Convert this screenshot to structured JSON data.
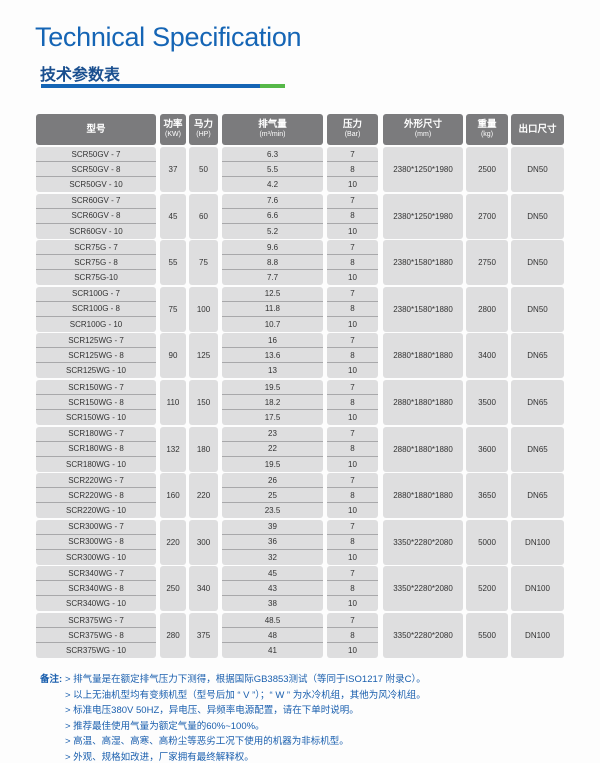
{
  "header": {
    "title": "Technical Specification",
    "subtitle": "技术参数表",
    "accent_blue": "#1565b5",
    "accent_green": "#56b848"
  },
  "table": {
    "columns": [
      {
        "label": "型号",
        "unit": ""
      },
      {
        "label": "功率",
        "unit": "(KW)"
      },
      {
        "label": "马力",
        "unit": "(HP)"
      },
      {
        "label": "排气量",
        "unit": "(m³/min)"
      },
      {
        "label": "压力",
        "unit": "(Bar)"
      },
      {
        "label": "外形尺寸",
        "unit": "(mm)"
      },
      {
        "label": "重量",
        "unit": "(kg)"
      },
      {
        "label": "出口尺寸",
        "unit": ""
      }
    ],
    "groups": [
      {
        "models": [
          "SCR50GV - 7",
          "SCR50GV - 8",
          "SCR50GV - 10"
        ],
        "power": "37",
        "hp": "50",
        "flow": [
          "6.3",
          "5.5",
          "4.2"
        ],
        "pressure": [
          "7",
          "8",
          "10"
        ],
        "dims": "2380*1250*1980",
        "weight": "2500",
        "outlet": "DN50"
      },
      {
        "models": [
          "SCR60GV - 7",
          "SCR60GV - 8",
          "SCR60GV - 10"
        ],
        "power": "45",
        "hp": "60",
        "flow": [
          "7.6",
          "6.6",
          "5.2"
        ],
        "pressure": [
          "7",
          "8",
          "10"
        ],
        "dims": "2380*1250*1980",
        "weight": "2700",
        "outlet": "DN50"
      },
      {
        "models": [
          "SCR75G - 7",
          "SCR75G - 8",
          "SCR75G-10"
        ],
        "power": "55",
        "hp": "75",
        "flow": [
          "9.6",
          "8.8",
          "7.7"
        ],
        "pressure": [
          "7",
          "8",
          "10"
        ],
        "dims": "2380*1580*1880",
        "weight": "2750",
        "outlet": "DN50"
      },
      {
        "models": [
          "SCR100G - 7",
          "SCR100G - 8",
          "SCR100G - 10"
        ],
        "power": "75",
        "hp": "100",
        "flow": [
          "12.5",
          "11.8",
          "10.7"
        ],
        "pressure": [
          "7",
          "8",
          "10"
        ],
        "dims": "2380*1580*1880",
        "weight": "2800",
        "outlet": "DN50"
      },
      {
        "models": [
          "SCR125WG - 7",
          "SCR125WG - 8",
          "SCR125WG - 10"
        ],
        "power": "90",
        "hp": "125",
        "flow": [
          "16",
          "13.6",
          "13"
        ],
        "pressure": [
          "7",
          "8",
          "10"
        ],
        "dims": "2880*1880*1880",
        "weight": "3400",
        "outlet": "DN65"
      },
      {
        "models": [
          "SCR150WG - 7",
          "SCR150WG - 8",
          "SCR150WG - 10"
        ],
        "power": "110",
        "hp": "150",
        "flow": [
          "19.5",
          "18.2",
          "17.5"
        ],
        "pressure": [
          "7",
          "8",
          "10"
        ],
        "dims": "2880*1880*1880",
        "weight": "3500",
        "outlet": "DN65"
      },
      {
        "models": [
          "SCR180WG - 7",
          "SCR180WG - 8",
          "SCR180WG - 10"
        ],
        "power": "132",
        "hp": "180",
        "flow": [
          "23",
          "22",
          "19.5"
        ],
        "pressure": [
          "7",
          "8",
          "10"
        ],
        "dims": "2880*1880*1880",
        "weight": "3600",
        "outlet": "DN65"
      },
      {
        "models": [
          "SCR220WG - 7",
          "SCR220WG - 8",
          "SCR220WG - 10"
        ],
        "power": "160",
        "hp": "220",
        "flow": [
          "26",
          "25",
          "23.5"
        ],
        "pressure": [
          "7",
          "8",
          "10"
        ],
        "dims": "2880*1880*1880",
        "weight": "3650",
        "outlet": "DN65"
      },
      {
        "models": [
          "SCR300WG - 7",
          "SCR300WG - 8",
          "SCR300WG - 10"
        ],
        "power": "220",
        "hp": "300",
        "flow": [
          "39",
          "36",
          "32"
        ],
        "pressure": [
          "7",
          "8",
          "10"
        ],
        "dims": "3350*2280*2080",
        "weight": "5000",
        "outlet": "DN100"
      },
      {
        "models": [
          "SCR340WG - 7",
          "SCR340WG - 8",
          "SCR340WG - 10"
        ],
        "power": "250",
        "hp": "340",
        "flow": [
          "45",
          "43",
          "38"
        ],
        "pressure": [
          "7",
          "8",
          "10"
        ],
        "dims": "3350*2280*2080",
        "weight": "5200",
        "outlet": "DN100"
      },
      {
        "models": [
          "SCR375WG - 7",
          "SCR375WG - 8",
          "SCR375WG - 10"
        ],
        "power": "280",
        "hp": "375",
        "flow": [
          "48.5",
          "48",
          "41"
        ],
        "pressure": [
          "7",
          "8",
          "10"
        ],
        "dims": "3350*2280*2080",
        "weight": "5500",
        "outlet": "DN100"
      }
    ]
  },
  "notes": {
    "label": "备注:",
    "items": [
      "> 排气量是在额定排气压力下测得，根据国际GB3853测试（等同于ISO1217 附录C）。",
      "> 以上无油机型均有变频机型（型号后加 “ V ”）；“ W ” 为水冷机组，其他为风冷机组。",
      "> 标准电压380V 50HZ，异电压、异频率电源配置，请在下单时说明。",
      "> 推荐最佳使用气量为额定气量的60%~100%。",
      "> 高温、高湿、高寒、高粉尘等恶劣工况下使用的机器为非标机型。",
      "> 外观、规格如改进，厂家拥有最终解释权。"
    ]
  }
}
